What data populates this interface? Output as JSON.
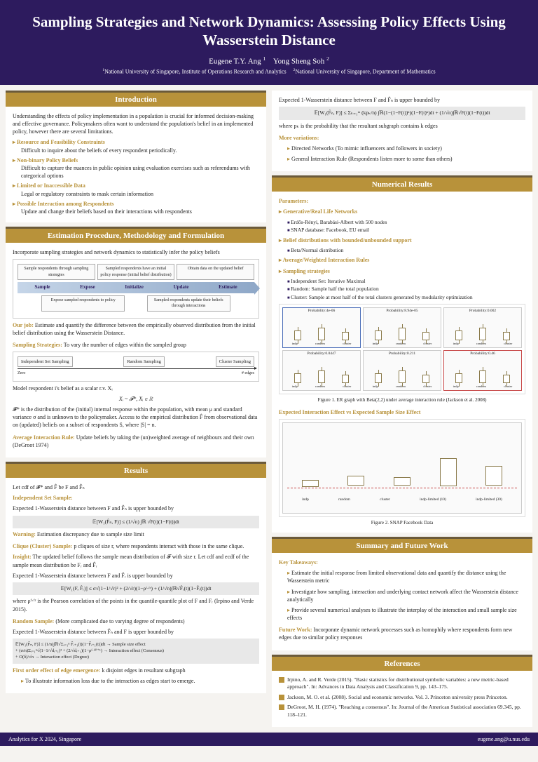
{
  "header": {
    "title": "Sampling Strategies and Network Dynamics: Assessing Policy Effects Using Wasserstein Distance",
    "author1": "Eugene T.Y. Ang",
    "author2": "Yong Sheng Soh",
    "affil1": "National University of Singapore, Institute of Operations Research and Analytics",
    "affil2": "National University of Singapore, Department of Mathematics"
  },
  "intro": {
    "header": "Introduction",
    "text": "Understanding the effects of policy implementation in a population is crucial for informed decision-making and effective governance. Policymakers often want to understand the population's belief in an implemented policy, however there are several limitations.",
    "items": [
      {
        "label": "Resource and Feasibility Constraints",
        "desc": "Difficult to inquire about the beliefs of every respondent periodically."
      },
      {
        "label": "Non-binary Policy Beliefs",
        "desc": "Difficult to capture the nuances in public opinion using evaluation exercises such as referendums with categorical options"
      },
      {
        "label": "Limited or Inaccessible Data",
        "desc": "Legal or regulatory constraints to mask certain information"
      },
      {
        "label": "Possible Interaction among Respondents",
        "desc": "Update and change their beliefs based on their interactions with respondents"
      }
    ]
  },
  "method": {
    "header": "Estimation Procedure, Methodology and Formulation",
    "intro": "Incorporate sampling strategies and network dynamics to statistically infer the policy beliefs",
    "flowTop": [
      "Sample respondents through sampling strategies",
      "Sampled respondents have an initial policy response (initial belief distribution)",
      "Obtain data on the updated belief"
    ],
    "flowSteps": [
      "Sample",
      "Expose",
      "Initialize",
      "Update",
      "Estimate"
    ],
    "flowBottom": [
      "Expose sampled respondents to policy",
      "Sampled respondents update their beliefs through interactions"
    ],
    "ourJob": "Estimate and quantify the difference between the empirically observed distribution from the initial belief distribution using the Wasserstein Distance.",
    "ourJobLabel": "Our job:",
    "samplingLabel": "Sampling Strategies:",
    "samplingDesc": "To vary the number of edges within the sampled group",
    "samplingBoxes": [
      "Independent Set Sampling",
      "Random Sampling",
      "Cluster Sampling"
    ],
    "axisLeft": "Zero",
    "axisRight": "# edges",
    "modelText": "Model respondent i's belief as a scalar r.v. Xᵢ",
    "modelFormula": "Xᵢ ~ 𝓕*,   Xᵢ ∈ ℝ",
    "fDesc": "𝓕* is the distribution of the (initial) internal response within the population, with mean μ and standard variance σ and is unknown to the policymaker. Access to the empirical distribution F̂ from observational data on (updated) beliefs on a subset of respondents S, where |S| = n.",
    "avgRuleLabel": "Average Interaction Rule:",
    "avgRuleDesc": "Update beliefs by taking the (un)weighted average of neighbours and their own (DeGroot 1974)"
  },
  "results": {
    "header": "Results",
    "cdfText": "Let cdf of 𝓕* and F̂ be F and F̂ₙ",
    "indepLabel": "Independent Set Sample:",
    "indepText": "Expected 1-Wasserstein distance between F and F̂ₙ is upper bounded by",
    "indepFormula": "𝔼[W₁(F̂ₙ, F)] ≤ (1/√n) ∫ℝ √F(t)(1−F(t))dt",
    "warningLabel": "Warning:",
    "warningText": "Estimation discrepancy due to sample size limit",
    "cliqueLabel": "Clique (Cluster) Sample:",
    "cliqueDesc": "p cliques of size r, where respondents interact with those in the same clique.",
    "insightLabel": "Insight:",
    "insightText": "The updated belief follows the sample mean distribution of 𝓕 with size r. Let cdf and ecdf of the sample mean distribution be Fᵣ and F̂ᵣ",
    "cliqueText2": "Expected 1-Wasserstein distance between F and F̂ᵣ is upper bounded by",
    "cliqueFormula": "𝔼[W₁(F, F̂ᵣ)] ≤ σ√(1−1/√r)² + (2/√r)(1−ρᶠ·ᶠʳ) + (1/√n)∫ℝ√F̂ᵣ(t)(1−F̂ᵣ(t))dt",
    "pearsonText": "where ρᶠ·ᶠʳ is the Pearson correlation of the points in the quantile-quantile plot of F and Fᵣ (Irpino and Verde 2015).",
    "randomLabel": "Random Sample:",
    "randomDesc": "(More complicated due to varying degree of respondents)",
    "randomText": "Expected 1-Wasserstein distance between F̂ₙ and F is upper bounded by",
    "randomFormula": "𝔼[W₁(F̂ₙ, F)] ≤ (1/n)∫ℝ√Σᵢ₌₁ⁿ F̂ᵢ₊₁(t)(1−F̂ᵢ₊₁(t))dt   → Sample size effect",
    "randomFormula2": "+ (σ/n)Σᵢ₌₁ⁿ√(1−1/√dᵢ₊₁)² + (2/√dᵢ₊₁)(1−ρᶠ·ᶠᵈⁱ⁺¹) → Interaction effect (Consensus)",
    "randomFormula3": "+ O(δ)/√n                                    → Interaction effect (Degree)",
    "firstOrderLabel": "First order effect of edge emergence:",
    "firstOrderDesc": "k disjoint edges in resultant subgraph",
    "firstOrderBullet": "To illustrate information loss due to the interaction as edges start to emerge."
  },
  "rightTop": {
    "expectedText": "Expected 1-Wasserstein distance between F and F̂ₙ is upper bounded by",
    "formula": "𝔼[W₁(F̂ₙ, F)] ≤ Σₖ₌₁ᵐ (kpₖ/n) ∫ℝ(1−(1−F(t))ᵏ)(1−F(t)ᵏ)dt + (1/√n)∫ℝ√F(t)(1−F(t))dt",
    "whereText": "where pₖ is the probability that the resultant subgraph contains k edges",
    "moreLabel": "More variations:",
    "var1": "Directed Networks (To mimic influencers and followers in society)",
    "var2": "General Interaction Rule (Respondents listen more to some than others)"
  },
  "numerical": {
    "header": "Numerical Results",
    "paramsLabel": "Parameters:",
    "p1Label": "Generative/Real Life Networks",
    "p1Items": [
      "Erdős-Rényi, Barabási-Albert with 500 nodes",
      "SNAP database: Facebook, EU email"
    ],
    "p2Label": "Belief distributions with bounded/unbounded support",
    "p2Items": [
      "Beta/Normal distribution"
    ],
    "p3Label": "Average/Weighted Interaction Rules",
    "p4Label": "Sampling strategies",
    "p4Items": [
      "Independent Set: Iterative Maximal",
      "Random: Sample half the total population",
      "Cluster: Sample at most half of the total clusters generated by modularity optimization"
    ],
    "plots": [
      {
        "title": "Probability:4e-06",
        "highlight": "blue"
      },
      {
        "title": "Probability:8.94e-05",
        "highlight": ""
      },
      {
        "title": "Probability:0.002",
        "highlight": ""
      },
      {
        "title": "Probability:0.0447",
        "highlight": ""
      },
      {
        "title": "Probability:0.211",
        "highlight": ""
      },
      {
        "title": "Probability:0.46",
        "highlight": "red"
      }
    ],
    "xlabels": [
      "indp",
      "random",
      "cluster"
    ],
    "fig1": "Figure 1. ER graph with Beta(2,2) under average interaction rule (Jackson et al. 2008)",
    "chart2Label": "Expected Interaction Effect vs Expected Sample Size Effect",
    "bigXlabels": [
      "indp",
      "random",
      "cluster",
      "indp-limited (10)",
      "indp-limited (30)"
    ],
    "fig2": "Figure 2. SNAP Facebook Data"
  },
  "summary": {
    "header": "Summary and Future Work",
    "keyLabel": "Key Takeaways:",
    "keys": [
      "Estimate the initial response from limited observational data and quantify the distance using the Wasserstein metric",
      "Investigate how sampling, interaction and underlying contact network affect the Wasserstein distance analytically",
      "Provide several numerical analyses to illustrate the interplay of the interaction and small sample size effects"
    ],
    "futureLabel": "Future Work:",
    "futureText": "Incorporate dynamic network processes such as homophily where respondents form new edges due to similar policy responses"
  },
  "refs": {
    "header": "References",
    "items": [
      "Irpino, A. and R. Verde (2015). \"Basic statistics for distributional symbolic variables: a new metric-based approach\". In: Advances in Data Analysis and Classification 9, pp. 143–175.",
      "Jackson, M. O. et al. (2008). Social and economic networks. Vol. 3. Princeton university press Princeton.",
      "DeGroot, M. H. (1974). \"Reaching a consensus\". In: Journal of the American Statistical association 69.345, pp. 118–121."
    ]
  },
  "footer": {
    "left": "Analytics for X 2024, Singapore",
    "right": "eugene.ang@u.nus.edu"
  },
  "colors": {
    "headerBg": "#2d1b5e",
    "sectionBg": "#b8923a",
    "sectionBorder": "#6b5a3a",
    "bodyBg": "#f5f3f0"
  }
}
